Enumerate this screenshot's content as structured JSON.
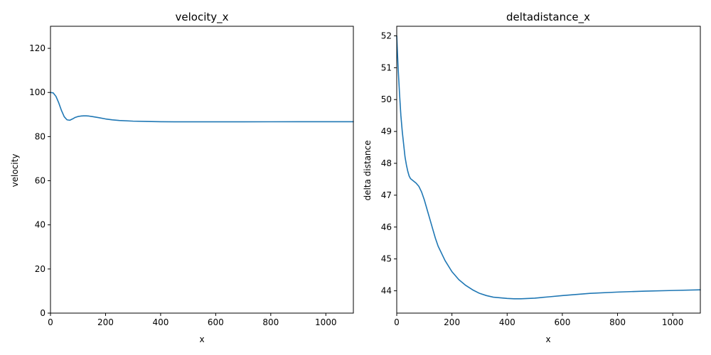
{
  "chart_data": [
    {
      "type": "line",
      "title": "velocity_x",
      "xlabel": "x",
      "ylabel": "velocity",
      "xlim": [
        0,
        1100
      ],
      "ylim": [
        0,
        130
      ],
      "xticks": [
        0,
        200,
        400,
        600,
        800,
        1000
      ],
      "yticks": [
        0,
        20,
        40,
        60,
        80,
        100,
        120
      ],
      "grid": false,
      "color": "#1f77b4",
      "series": [
        {
          "x": [
            0,
            10,
            20,
            30,
            40,
            50,
            60,
            70,
            80,
            90,
            100,
            110,
            120,
            130,
            140,
            150,
            175,
            200,
            225,
            250,
            300,
            350,
            400,
            450,
            500,
            600,
            700,
            800,
            900,
            1000,
            1100
          ],
          "y": [
            100,
            99.8,
            98.2,
            95.3,
            91.8,
            89.0,
            87.6,
            87.4,
            88.0,
            88.7,
            89.1,
            89.3,
            89.4,
            89.4,
            89.3,
            89.1,
            88.6,
            88.0,
            87.6,
            87.3,
            87.0,
            86.85,
            86.75,
            86.7,
            86.7,
            86.7,
            86.7,
            86.72,
            86.74,
            86.75,
            86.75
          ]
        }
      ]
    },
    {
      "type": "line",
      "title": "deltadistance_x",
      "xlabel": "x",
      "ylabel": "delta distance",
      "xlim": [
        0,
        1100
      ],
      "ylim": [
        43.3,
        52.3
      ],
      "xticks": [
        0,
        200,
        400,
        600,
        800,
        1000
      ],
      "yticks": [
        44,
        45,
        46,
        47,
        48,
        49,
        50,
        51,
        52
      ],
      "grid": false,
      "color": "#1f77b4",
      "series": [
        {
          "x": [
            0,
            5,
            10,
            15,
            20,
            25,
            30,
            35,
            40,
            45,
            50,
            60,
            70,
            80,
            90,
            100,
            110,
            120,
            130,
            140,
            150,
            175,
            200,
            225,
            250,
            275,
            300,
            325,
            350,
            400,
            425,
            450,
            500,
            550,
            600,
            700,
            800,
            900,
            1000,
            1100
          ],
          "y": [
            52.0,
            51.0,
            50.2,
            49.5,
            49.0,
            48.6,
            48.2,
            47.95,
            47.75,
            47.6,
            47.52,
            47.45,
            47.38,
            47.28,
            47.1,
            46.85,
            46.55,
            46.25,
            45.95,
            45.65,
            45.4,
            44.95,
            44.6,
            44.35,
            44.17,
            44.03,
            43.92,
            43.85,
            43.8,
            43.76,
            43.75,
            43.75,
            43.77,
            43.81,
            43.85,
            43.92,
            43.96,
            43.99,
            44.01,
            44.03
          ]
        }
      ]
    }
  ]
}
